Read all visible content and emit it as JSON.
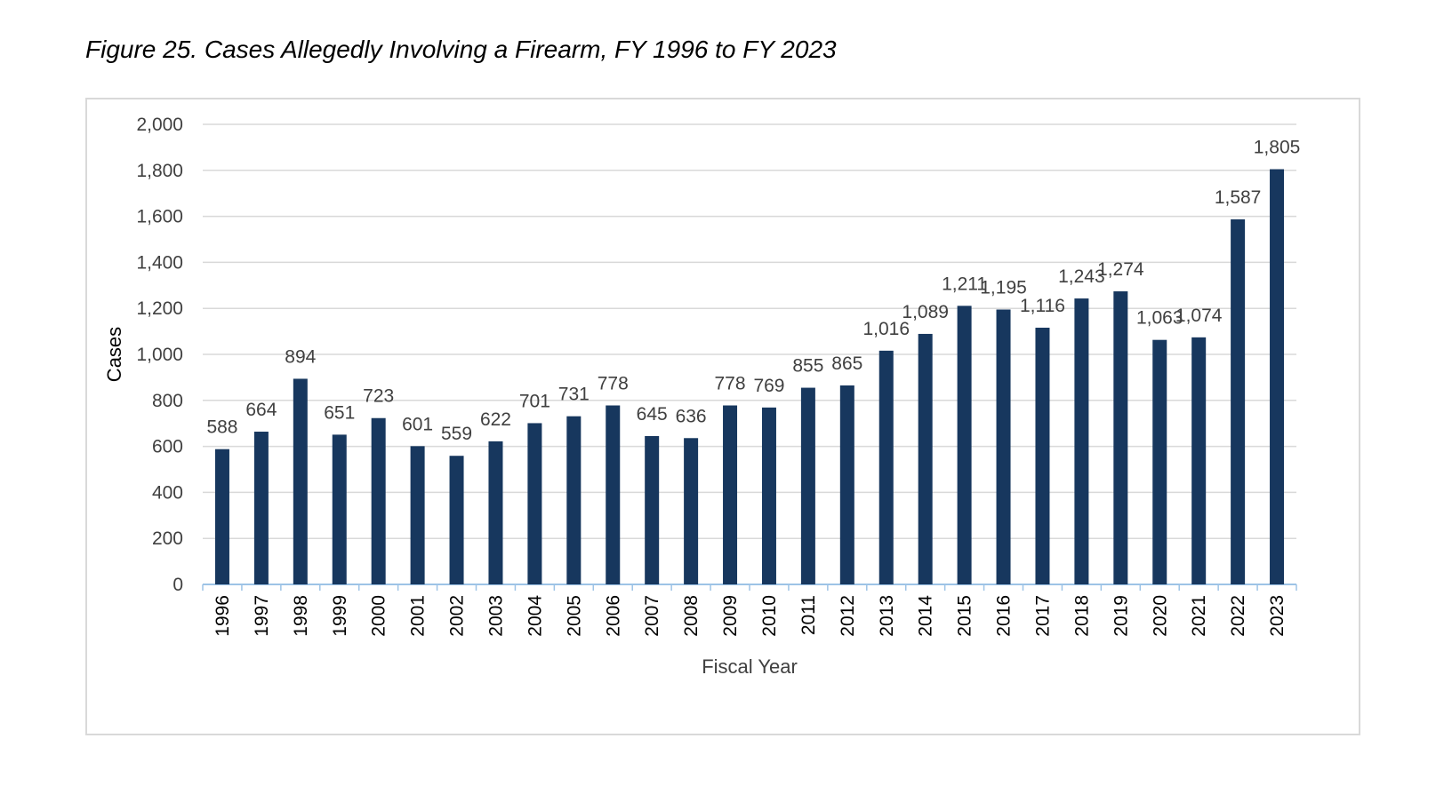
{
  "figure": {
    "title": "Figure 25. Cases Allegedly Involving a Firearm, FY 1996 to FY 2023"
  },
  "colors": {
    "bar": "#17375e",
    "grid": "#d9d9d9",
    "axis": "#9dc3e6",
    "text": "#404040"
  },
  "chart_data": {
    "type": "bar",
    "title": "Figure 25. Cases Allegedly Involving a Firearm, FY 1996 to FY 2023",
    "xlabel": "Fiscal Year",
    "ylabel": "Cases",
    "ylim": [
      0,
      2000
    ],
    "yticks": [
      0,
      200,
      400,
      600,
      800,
      1000,
      1200,
      1400,
      1600,
      1800,
      2000
    ],
    "ytick_labels": [
      "0",
      "200",
      "400",
      "600",
      "800",
      "1,000",
      "1,200",
      "1,400",
      "1,600",
      "1,800",
      "2,000"
    ],
    "grid": true,
    "legend": "none",
    "categories": [
      "1996",
      "1997",
      "1998",
      "1999",
      "2000",
      "2001",
      "2002",
      "2003",
      "2004",
      "2005",
      "2006",
      "2007",
      "2008",
      "2009",
      "2010",
      "2011",
      "2012",
      "2013",
      "2014",
      "2015",
      "2016",
      "2017",
      "2018",
      "2019",
      "2020",
      "2021",
      "2022",
      "2023"
    ],
    "values": [
      588,
      664,
      894,
      651,
      723,
      601,
      559,
      622,
      701,
      731,
      778,
      645,
      636,
      778,
      769,
      855,
      865,
      1016,
      1089,
      1211,
      1195,
      1116,
      1243,
      1274,
      1063,
      1074,
      1587,
      1805
    ],
    "data_labels": [
      "588",
      "664",
      "894",
      "651",
      "723",
      "601",
      "559",
      "622",
      "701",
      "731",
      "778",
      "645",
      "636",
      "778",
      "769",
      "855",
      "865",
      "1,016",
      "1,089",
      "1,211",
      "1,195",
      "1,116",
      "1,243",
      "1,274",
      "1,063",
      "1,074",
      "1,587",
      "1,805"
    ]
  }
}
